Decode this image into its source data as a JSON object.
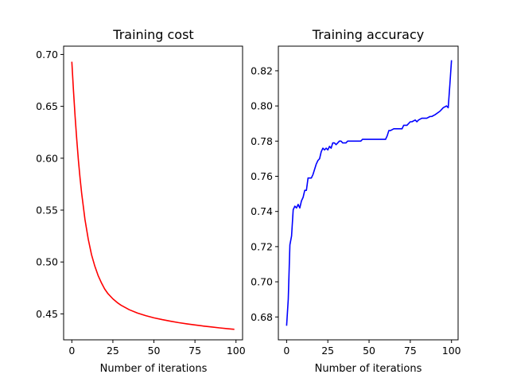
{
  "chart_data": [
    {
      "type": "line",
      "title": "Training cost",
      "xlabel": "Number of iterations",
      "ylabel": "",
      "xlim": [
        -5,
        104
      ],
      "ylim": [
        0.425,
        0.708
      ],
      "xticks": [
        0,
        25,
        50,
        75,
        100
      ],
      "yticks": [
        0.45,
        0.5,
        0.55,
        0.6,
        0.65,
        0.7
      ],
      "xtick_labels": [
        "0",
        "25",
        "50",
        "75",
        "100"
      ],
      "ytick_labels": [
        "0.45",
        "0.50",
        "0.55",
        "0.60",
        "0.65",
        "0.70"
      ],
      "grid": false,
      "color": "#ff0000",
      "series": [
        {
          "x": [
            0,
            1,
            2,
            3,
            4,
            5,
            6,
            8,
            10,
            12,
            14,
            16,
            18,
            20,
            22,
            25,
            28,
            30,
            35,
            40,
            45,
            50,
            55,
            60,
            65,
            70,
            75,
            80,
            85,
            90,
            95,
            99
          ],
          "values": [
            0.693,
            0.665,
            0.64,
            0.618,
            0.598,
            0.581,
            0.566,
            0.541,
            0.522,
            0.507,
            0.496,
            0.487,
            0.48,
            0.474,
            0.4695,
            0.4645,
            0.4605,
            0.4583,
            0.454,
            0.4508,
            0.4483,
            0.4462,
            0.4445,
            0.443,
            0.4416,
            0.4404,
            0.4393,
            0.4383,
            0.4374,
            0.4365,
            0.4357,
            0.4351
          ]
        }
      ]
    },
    {
      "type": "line",
      "title": "Training accuracy",
      "xlabel": "Number of iterations",
      "ylabel": "",
      "xlim": [
        -5,
        104
      ],
      "ylim": [
        0.667,
        0.834
      ],
      "xticks": [
        0,
        25,
        50,
        75,
        100
      ],
      "yticks": [
        0.68,
        0.7,
        0.72,
        0.74,
        0.76,
        0.78,
        0.8,
        0.82
      ],
      "xtick_labels": [
        "0",
        "25",
        "50",
        "75",
        "100"
      ],
      "ytick_labels": [
        "0.68",
        "0.70",
        "0.72",
        "0.74",
        "0.76",
        "0.78",
        "0.80",
        "0.82"
      ],
      "grid": false,
      "color": "#0000ff",
      "series": [
        {
          "x": [
            0,
            1,
            2,
            3,
            4,
            5,
            6,
            7,
            8,
            9,
            10,
            11,
            12,
            13,
            14,
            15,
            16,
            17,
            18,
            19,
            20,
            21,
            22,
            23,
            24,
            25,
            26,
            27,
            28,
            29,
            30,
            31,
            32,
            33,
            34,
            35,
            36,
            37,
            38,
            39,
            40,
            45,
            46,
            50,
            55,
            60,
            61,
            62,
            63,
            65,
            66,
            70,
            71,
            72,
            73,
            75,
            76,
            78,
            79,
            80,
            82,
            83,
            85,
            87,
            88,
            90,
            93,
            94,
            95,
            97,
            98,
            99,
            100
          ],
          "values": [
            0.675,
            0.69,
            0.721,
            0.726,
            0.741,
            0.743,
            0.742,
            0.744,
            0.742,
            0.746,
            0.748,
            0.752,
            0.752,
            0.759,
            0.759,
            0.759,
            0.761,
            0.764,
            0.767,
            0.769,
            0.77,
            0.774,
            0.776,
            0.775,
            0.776,
            0.775,
            0.777,
            0.776,
            0.779,
            0.779,
            0.778,
            0.779,
            0.78,
            0.78,
            0.779,
            0.779,
            0.779,
            0.78,
            0.78,
            0.78,
            0.78,
            0.78,
            0.781,
            0.781,
            0.781,
            0.781,
            0.783,
            0.786,
            0.786,
            0.787,
            0.787,
            0.787,
            0.789,
            0.789,
            0.789,
            0.791,
            0.791,
            0.792,
            0.791,
            0.792,
            0.793,
            0.793,
            0.793,
            0.794,
            0.794,
            0.795,
            0.797,
            0.798,
            0.799,
            0.8,
            0.799,
            0.812,
            0.826
          ]
        }
      ]
    }
  ]
}
